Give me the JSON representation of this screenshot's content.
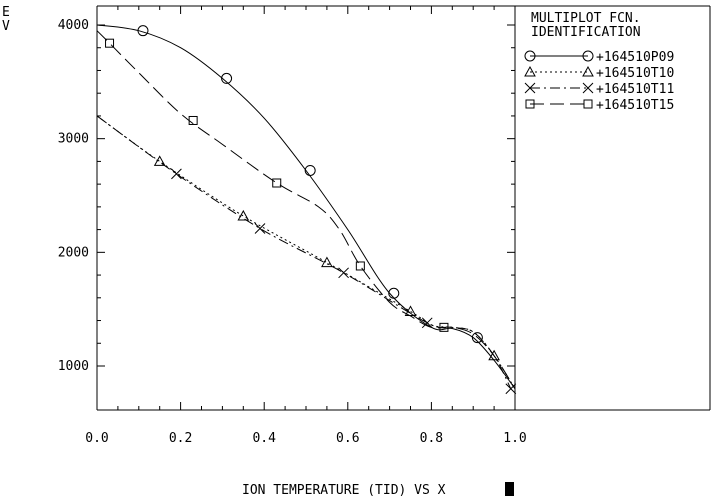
{
  "chart_data": {
    "type": "line",
    "title": "ION TEMPERATURE (TID) VS X",
    "ylabel": "E\nV",
    "xlim": [
      0.0,
      1.0
    ],
    "ylim": [
      600,
      4200
    ],
    "x_ticks": [
      "0.0",
      "0.2",
      "0.4",
      "0.6",
      "0.8",
      "1.0"
    ],
    "y_ticks": [
      "1000",
      "2000",
      "3000",
      "4000"
    ],
    "legend_title": [
      "MULTIPLOT FCN.",
      "IDENTIFICATION"
    ],
    "series": [
      {
        "name": "+164510P09",
        "marker": "circle",
        "dash": "solid",
        "x": [
          0.0,
          0.1,
          0.2,
          0.3,
          0.4,
          0.5,
          0.6,
          0.7,
          0.8,
          0.85,
          0.9,
          0.95,
          1.0
        ],
        "y": [
          4000,
          3950,
          3800,
          3530,
          3180,
          2720,
          2200,
          1640,
          1340,
          1330,
          1250,
          1050,
          800
        ],
        "markers_x": [
          0.11,
          0.31,
          0.51,
          0.71,
          0.91
        ],
        "markers_y": [
          3950,
          3530,
          2720,
          1640,
          1250
        ]
      },
      {
        "name": "+164510T10",
        "marker": "triangle",
        "dash": "dot",
        "x": [
          0.0,
          0.15,
          0.35,
          0.55,
          0.75,
          0.8,
          0.85,
          0.9,
          0.95,
          1.0
        ],
        "y": [
          3200,
          2800,
          2320,
          1910,
          1480,
          1360,
          1340,
          1300,
          1090,
          800
        ],
        "markers_x": [
          0.15,
          0.35,
          0.55,
          0.75,
          0.95
        ],
        "markers_y": [
          2800,
          2320,
          1910,
          1480,
          1090
        ]
      },
      {
        "name": "+164510T11",
        "marker": "x",
        "dash": "dashdot",
        "x": [
          0.0,
          0.19,
          0.39,
          0.59,
          0.79,
          0.85,
          0.9,
          0.95,
          0.99
        ],
        "y": [
          3200,
          2690,
          2210,
          1820,
          1380,
          1340,
          1300,
          1090,
          800
        ],
        "markers_x": [
          0.19,
          0.39,
          0.59,
          0.79,
          0.99
        ],
        "markers_y": [
          2690,
          2210,
          1820,
          1380,
          800
        ]
      },
      {
        "name": "+164510T15",
        "marker": "square",
        "dash": "longdash",
        "x": [
          0.0,
          0.03,
          0.1,
          0.2,
          0.3,
          0.43,
          0.53,
          0.58,
          0.63,
          0.7,
          0.75,
          0.8,
          0.85,
          0.9,
          0.95,
          1.0
        ],
        "y": [
          3950,
          3840,
          3580,
          3220,
          2950,
          2610,
          2400,
          2200,
          1880,
          1560,
          1440,
          1340,
          1340,
          1280,
          1090,
          800
        ],
        "markers_x": [
          0.03,
          0.23,
          0.43,
          0.63,
          0.83
        ],
        "markers_y": [
          3840,
          3160,
          2610,
          1880,
          1340
        ]
      }
    ]
  }
}
